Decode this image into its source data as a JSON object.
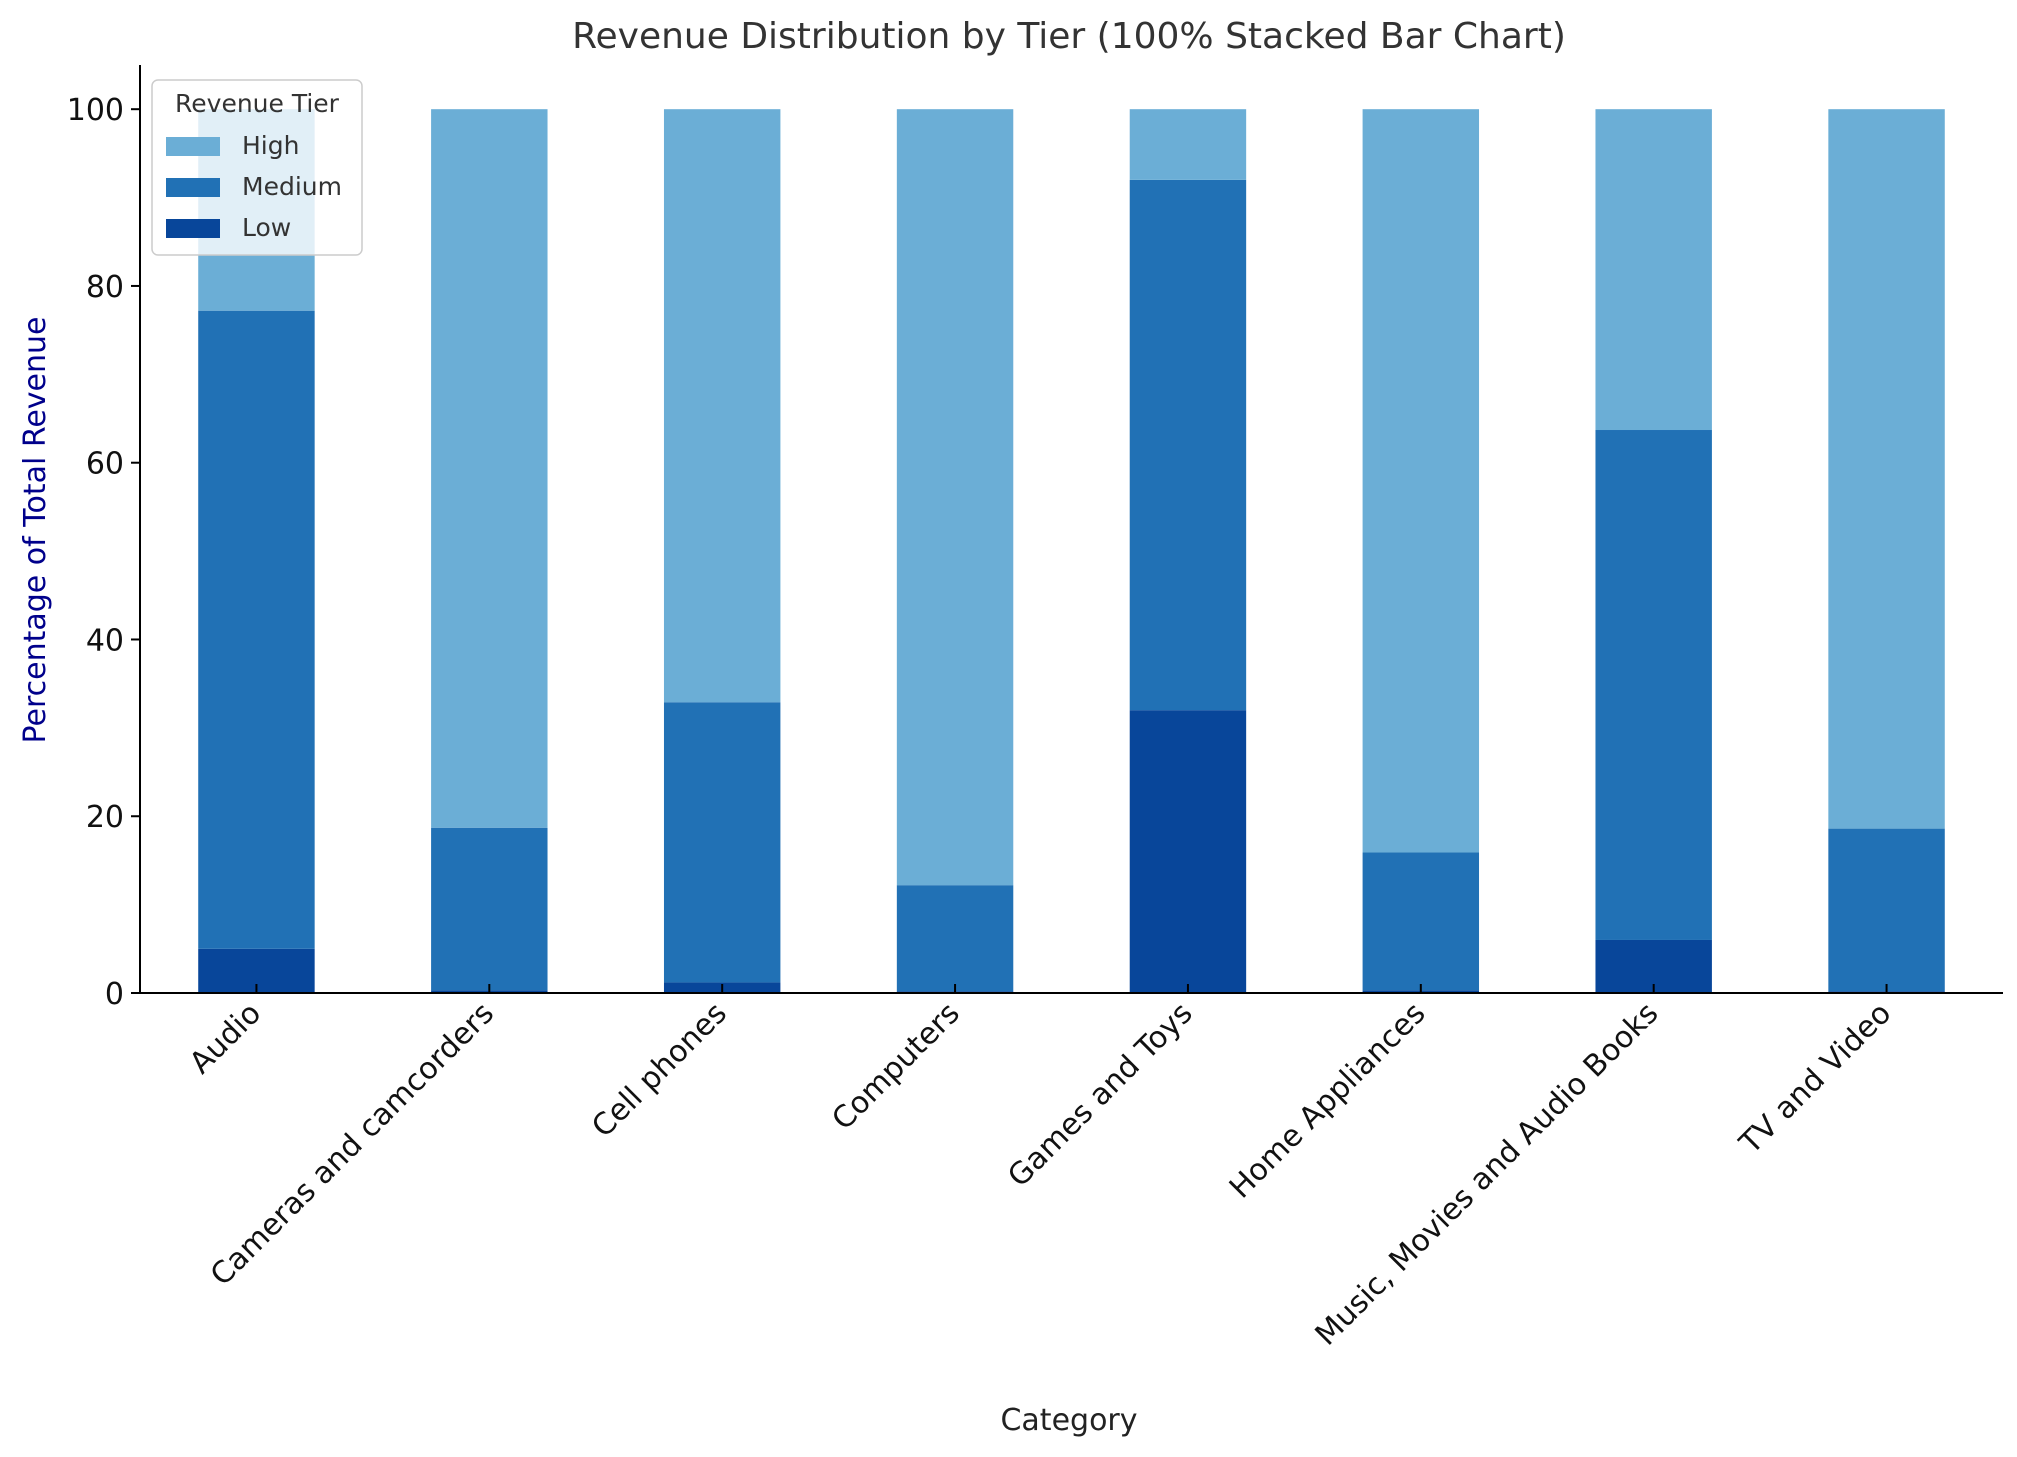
{
  "chart_data": {
    "type": "bar",
    "stacked": true,
    "title": "Revenue Distribution by Tier (100% Stacked Bar Chart)",
    "xlabel": "Category",
    "ylabel": "Percentage of Total Revenue",
    "ylim": [
      0,
      105
    ],
    "yticks": [
      "0",
      "20",
      "40",
      "60",
      "80",
      "100"
    ],
    "grid": false,
    "legend": {
      "title": "Revenue Tier",
      "placement": "top-left",
      "entries": [
        "High",
        "Medium",
        "Low"
      ]
    },
    "categories": [
      "Audio",
      "Cameras and camcorders",
      "Cell phones",
      "Computers",
      "Games and Toys",
      "Home Appliances",
      "Music, Movies and Audio Books",
      "TV and Video"
    ],
    "series": [
      {
        "name": "Low",
        "color": "#08469a",
        "values": [
          5.0,
          0.3,
          1.2,
          0.2,
          32.0,
          0.3,
          6.0,
          0.2
        ]
      },
      {
        "name": "Medium",
        "color": "#2171b5",
        "values": [
          72.2,
          18.4,
          31.7,
          12.0,
          60.0,
          15.6,
          57.7,
          18.4
        ]
      },
      {
        "name": "High",
        "color": "#6baed6",
        "values": [
          22.8,
          81.3,
          67.1,
          87.8,
          8.0,
          84.1,
          36.3,
          81.4
        ]
      }
    ]
  }
}
